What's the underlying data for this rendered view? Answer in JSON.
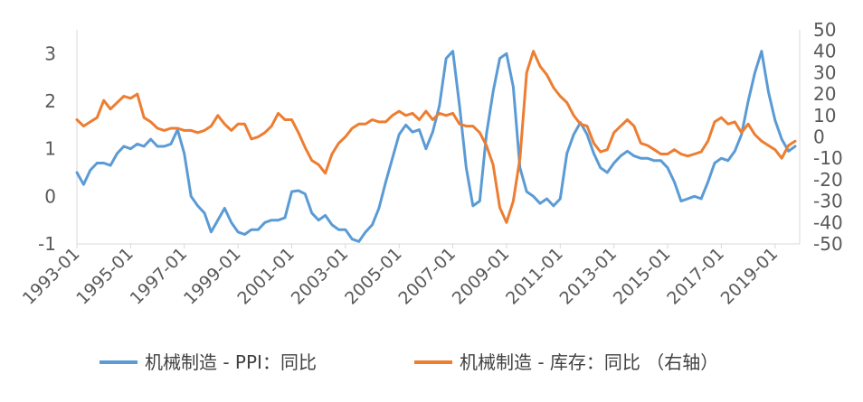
{
  "colors": {
    "blue": "#5B9BD5",
    "orange": "#ED7D31",
    "axis": "#D9D9D9",
    "text": "#595959"
  },
  "chart_data": {
    "type": "line",
    "x_tick_labels": [
      "1993-01",
      "1995-01",
      "1997-01",
      "1999-01",
      "2001-01",
      "2003-01",
      "2005-01",
      "2007-01",
      "2009-01",
      "2011-01",
      "2013-01",
      "2015-01",
      "2017-01",
      "2019-01"
    ],
    "y_left": {
      "range": [
        -1,
        3.5
      ],
      "ticks": [
        -1,
        0,
        1,
        2,
        3
      ]
    },
    "y_right": {
      "range": [
        -50,
        50
      ],
      "ticks": [
        -50,
        -40,
        -30,
        -20,
        -10,
        0,
        10,
        20,
        30,
        40,
        50
      ]
    },
    "grid": false,
    "legend_position": "bottom",
    "series": [
      {
        "name": "机械制造 - PPI：同比",
        "axis": "left",
        "color": "#5B9BD5",
        "points": [
          [
            "1993-01",
            0.5
          ],
          [
            "1993-04",
            0.25
          ],
          [
            "1993-07",
            0.55
          ],
          [
            "1993-10",
            0.7
          ],
          [
            "1994-01",
            0.7
          ],
          [
            "1994-04",
            0.65
          ],
          [
            "1994-07",
            0.9
          ],
          [
            "1994-10",
            1.05
          ],
          [
            "1995-01",
            1.0
          ],
          [
            "1995-04",
            1.1
          ],
          [
            "1995-07",
            1.05
          ],
          [
            "1995-10",
            1.2
          ],
          [
            "1996-01",
            1.05
          ],
          [
            "1996-04",
            1.05
          ],
          [
            "1996-07",
            1.1
          ],
          [
            "1996-10",
            1.4
          ],
          [
            "1997-01",
            0.9
          ],
          [
            "1997-04",
            0.0
          ],
          [
            "1997-07",
            -0.2
          ],
          [
            "1997-10",
            -0.35
          ],
          [
            "1998-01",
            -0.75
          ],
          [
            "1998-04",
            -0.5
          ],
          [
            "1998-07",
            -0.25
          ],
          [
            "1998-10",
            -0.55
          ],
          [
            "1999-01",
            -0.75
          ],
          [
            "1999-04",
            -0.8
          ],
          [
            "1999-07",
            -0.7
          ],
          [
            "1999-10",
            -0.7
          ],
          [
            "2000-01",
            -0.55
          ],
          [
            "2000-04",
            -0.5
          ],
          [
            "2000-07",
            -0.5
          ],
          [
            "2000-10",
            -0.45
          ],
          [
            "2001-01",
            0.1
          ],
          [
            "2001-04",
            0.12
          ],
          [
            "2001-07",
            0.05
          ],
          [
            "2001-10",
            -0.35
          ],
          [
            "2002-01",
            -0.5
          ],
          [
            "2002-04",
            -0.4
          ],
          [
            "2002-07",
            -0.6
          ],
          [
            "2002-10",
            -0.7
          ],
          [
            "2003-01",
            -0.7
          ],
          [
            "2003-04",
            -0.9
          ],
          [
            "2003-07",
            -0.95
          ],
          [
            "2003-10",
            -0.75
          ],
          [
            "2004-01",
            -0.6
          ],
          [
            "2004-04",
            -0.25
          ],
          [
            "2004-07",
            0.3
          ],
          [
            "2004-10",
            0.8
          ],
          [
            "2005-01",
            1.3
          ],
          [
            "2005-04",
            1.5
          ],
          [
            "2005-07",
            1.35
          ],
          [
            "2005-10",
            1.4
          ],
          [
            "2006-01",
            1.0
          ],
          [
            "2006-04",
            1.35
          ],
          [
            "2006-07",
            1.9
          ],
          [
            "2006-10",
            2.9
          ],
          [
            "2007-01",
            3.05
          ],
          [
            "2007-04",
            1.9
          ],
          [
            "2007-07",
            0.6
          ],
          [
            "2007-10",
            -0.2
          ],
          [
            "2008-01",
            -0.1
          ],
          [
            "2008-04",
            1.3
          ],
          [
            "2008-07",
            2.2
          ],
          [
            "2008-10",
            2.9
          ],
          [
            "2009-01",
            3.0
          ],
          [
            "2009-04",
            2.3
          ],
          [
            "2009-07",
            0.6
          ],
          [
            "2009-10",
            0.1
          ],
          [
            "2010-01",
            0.0
          ],
          [
            "2010-04",
            -0.15
          ],
          [
            "2010-07",
            -0.05
          ],
          [
            "2010-10",
            -0.2
          ],
          [
            "2011-01",
            -0.05
          ],
          [
            "2011-04",
            0.9
          ],
          [
            "2011-07",
            1.3
          ],
          [
            "2011-10",
            1.55
          ],
          [
            "2012-01",
            1.3
          ],
          [
            "2012-04",
            0.9
          ],
          [
            "2012-07",
            0.6
          ],
          [
            "2012-10",
            0.5
          ],
          [
            "2013-01",
            0.7
          ],
          [
            "2013-04",
            0.85
          ],
          [
            "2013-07",
            0.95
          ],
          [
            "2013-10",
            0.85
          ],
          [
            "2014-01",
            0.8
          ],
          [
            "2014-04",
            0.8
          ],
          [
            "2014-07",
            0.75
          ],
          [
            "2014-10",
            0.75
          ],
          [
            "2015-01",
            0.6
          ],
          [
            "2015-04",
            0.3
          ],
          [
            "2015-07",
            -0.1
          ],
          [
            "2015-10",
            -0.05
          ],
          [
            "2016-01",
            0.0
          ],
          [
            "2016-04",
            -0.05
          ],
          [
            "2016-07",
            0.3
          ],
          [
            "2016-10",
            0.7
          ],
          [
            "2017-01",
            0.8
          ],
          [
            "2017-04",
            0.75
          ],
          [
            "2017-07",
            0.95
          ],
          [
            "2017-10",
            1.3
          ],
          [
            "2018-01",
            2.0
          ],
          [
            "2018-04",
            2.6
          ],
          [
            "2018-07",
            3.05
          ],
          [
            "2018-10",
            2.2
          ],
          [
            "2019-01",
            1.6
          ],
          [
            "2019-04",
            1.2
          ],
          [
            "2019-07",
            0.95
          ],
          [
            "2019-10",
            1.05
          ]
        ]
      },
      {
        "name": "机械制造 - 库存：同比 （右轴）",
        "axis": "right",
        "color": "#ED7D31",
        "points": [
          [
            "1993-01",
            8
          ],
          [
            "1993-04",
            5
          ],
          [
            "1993-07",
            7
          ],
          [
            "1993-10",
            9
          ],
          [
            "1994-01",
            17
          ],
          [
            "1994-04",
            13
          ],
          [
            "1994-07",
            16
          ],
          [
            "1994-10",
            19
          ],
          [
            "1995-01",
            18
          ],
          [
            "1995-04",
            20
          ],
          [
            "1995-07",
            9
          ],
          [
            "1995-10",
            7
          ],
          [
            "1996-01",
            4
          ],
          [
            "1996-04",
            3
          ],
          [
            "1996-07",
            4
          ],
          [
            "1996-10",
            4
          ],
          [
            "1997-01",
            3
          ],
          [
            "1997-04",
            3
          ],
          [
            "1997-07",
            2
          ],
          [
            "1997-10",
            3
          ],
          [
            "1998-01",
            5
          ],
          [
            "1998-04",
            10
          ],
          [
            "1998-07",
            6
          ],
          [
            "1998-10",
            3
          ],
          [
            "1999-01",
            6
          ],
          [
            "1999-04",
            6
          ],
          [
            "1999-07",
            -1
          ],
          [
            "1999-10",
            0
          ],
          [
            "2000-01",
            2
          ],
          [
            "2000-04",
            5
          ],
          [
            "2000-07",
            11
          ],
          [
            "2000-10",
            8
          ],
          [
            "2001-01",
            8
          ],
          [
            "2001-04",
            2
          ],
          [
            "2001-07",
            -5
          ],
          [
            "2001-10",
            -11
          ],
          [
            "2002-01",
            -13
          ],
          [
            "2002-04",
            -17
          ],
          [
            "2002-07",
            -8
          ],
          [
            "2002-10",
            -3
          ],
          [
            "2003-01",
            0
          ],
          [
            "2003-04",
            4
          ],
          [
            "2003-07",
            6
          ],
          [
            "2003-10",
            6
          ],
          [
            "2004-01",
            8
          ],
          [
            "2004-04",
            7
          ],
          [
            "2004-07",
            7
          ],
          [
            "2004-10",
            10
          ],
          [
            "2005-01",
            12
          ],
          [
            "2005-04",
            10
          ],
          [
            "2005-07",
            11
          ],
          [
            "2005-10",
            8
          ],
          [
            "2006-01",
            12
          ],
          [
            "2006-04",
            8
          ],
          [
            "2006-07",
            11
          ],
          [
            "2006-10",
            10
          ],
          [
            "2007-01",
            11
          ],
          [
            "2007-04",
            6
          ],
          [
            "2007-07",
            5
          ],
          [
            "2007-10",
            5
          ],
          [
            "2008-01",
            2
          ],
          [
            "2008-04",
            -4
          ],
          [
            "2008-07",
            -13
          ],
          [
            "2008-10",
            -33
          ],
          [
            "2009-01",
            -40
          ],
          [
            "2009-04",
            -30
          ],
          [
            "2009-07",
            -10
          ],
          [
            "2009-10",
            30
          ],
          [
            "2010-01",
            40
          ],
          [
            "2010-04",
            33
          ],
          [
            "2010-07",
            29
          ],
          [
            "2010-10",
            23
          ],
          [
            "2011-01",
            19
          ],
          [
            "2011-04",
            16
          ],
          [
            "2011-07",
            10
          ],
          [
            "2011-10",
            6
          ],
          [
            "2012-01",
            5
          ],
          [
            "2012-04",
            -3
          ],
          [
            "2012-07",
            -7
          ],
          [
            "2012-10",
            -6
          ],
          [
            "2013-01",
            2
          ],
          [
            "2013-04",
            5
          ],
          [
            "2013-07",
            8
          ],
          [
            "2013-10",
            5
          ],
          [
            "2014-01",
            -3
          ],
          [
            "2014-04",
            -4
          ],
          [
            "2014-07",
            -6
          ],
          [
            "2014-10",
            -8
          ],
          [
            "2015-01",
            -8
          ],
          [
            "2015-04",
            -6
          ],
          [
            "2015-07",
            -8
          ],
          [
            "2015-10",
            -9
          ],
          [
            "2016-01",
            -8
          ],
          [
            "2016-04",
            -7
          ],
          [
            "2016-07",
            -2
          ],
          [
            "2016-10",
            7
          ],
          [
            "2017-01",
            9
          ],
          [
            "2017-04",
            6
          ],
          [
            "2017-07",
            7
          ],
          [
            "2017-10",
            2
          ],
          [
            "2018-01",
            6
          ],
          [
            "2018-04",
            1
          ],
          [
            "2018-07",
            -2
          ],
          [
            "2018-10",
            -4
          ],
          [
            "2019-01",
            -6
          ],
          [
            "2019-04",
            -10
          ],
          [
            "2019-07",
            -4
          ],
          [
            "2019-10",
            -2
          ]
        ]
      }
    ]
  }
}
